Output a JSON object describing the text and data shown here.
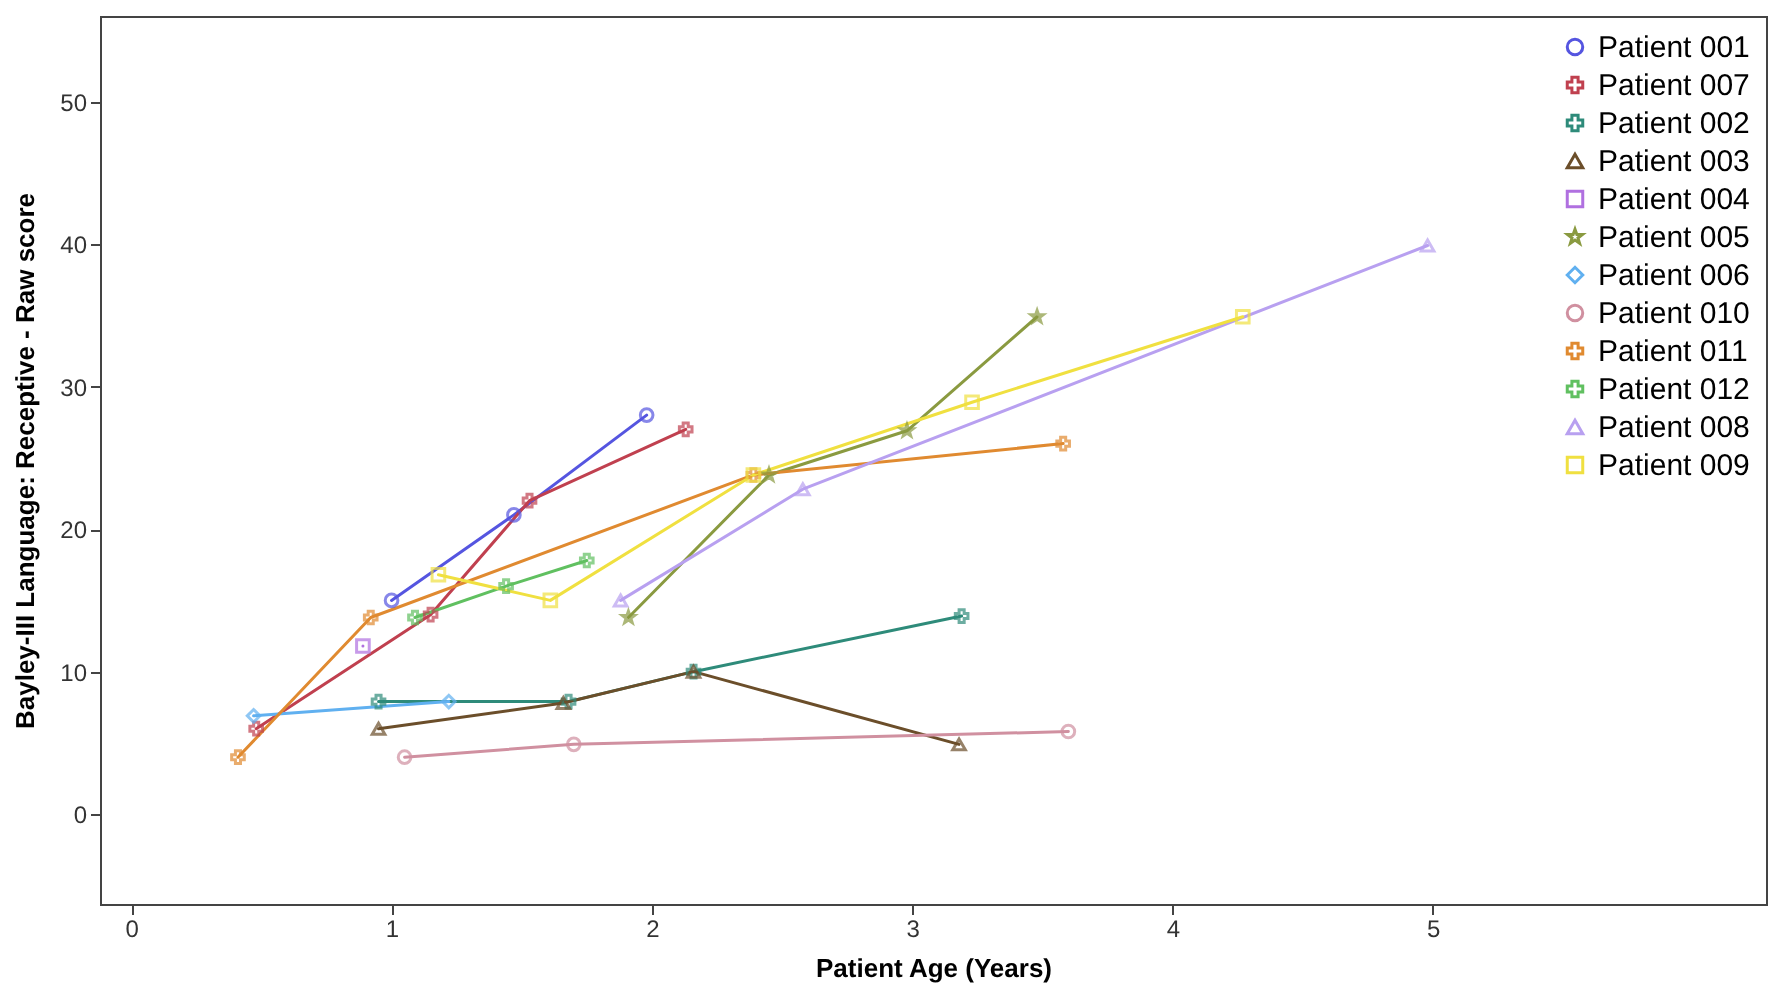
{
  "chart_data": {
    "type": "line",
    "xlabel": "Patient Age (Years)",
    "ylabel": "Bayley-III Language: Receptive - Raw score",
    "xlim": [
      -0.12,
      6.28
    ],
    "xticks": [
      0,
      1,
      2,
      3,
      4,
      5
    ],
    "ylim": [
      -6.3,
      56
    ],
    "yticks": [
      0,
      10,
      20,
      30,
      40,
      50
    ],
    "grid": false,
    "legend": "top right",
    "line_style": "solid",
    "series": [
      {
        "name": "Patient 001",
        "color": "#5555e0",
        "marker": "circle",
        "x": [
          1.0,
          1.47,
          1.98
        ],
        "values": [
          15,
          21,
          28
        ]
      },
      {
        "name": "Patient 007",
        "color": "#c0404f",
        "marker": "cross",
        "x": [
          0.48,
          1.15,
          1.53,
          2.13
        ],
        "values": [
          6,
          14,
          22,
          27
        ]
      },
      {
        "name": "Patient 002",
        "color": "#2e8b7a",
        "marker": "cross",
        "x": [
          0.95,
          1.68,
          2.16,
          3.19
        ],
        "values": [
          7.9,
          7.9,
          10,
          13.9
        ]
      },
      {
        "name": "Patient 003",
        "color": "#6b4e2a",
        "marker": "triangle",
        "x": [
          0.95,
          1.66,
          2.16,
          3.18
        ],
        "values": [
          6,
          7.8,
          10,
          4.9
        ]
      },
      {
        "name": "Patient 004",
        "color": "#b070e0",
        "marker": "square",
        "x": [
          0.89
        ],
        "values": [
          11.8
        ]
      },
      {
        "name": "Patient 005",
        "color": "#8a9a40",
        "marker": "star",
        "x": [
          1.91,
          2.45,
          2.98,
          3.48
        ],
        "values": [
          13.8,
          23.8,
          26.9,
          34.9
        ]
      },
      {
        "name": "Patient 006",
        "color": "#60b0f0",
        "marker": "diamond",
        "x": [
          0.47,
          1.22
        ],
        "values": [
          6.9,
          7.9
        ]
      },
      {
        "name": "Patient 010",
        "color": "#d090a0",
        "marker": "circle",
        "x": [
          1.05,
          1.7,
          3.6
        ],
        "values": [
          4,
          4.9,
          5.8
        ]
      },
      {
        "name": "Patient 011",
        "color": "#e08a30",
        "marker": "cross",
        "x": [
          0.41,
          0.92,
          2.39,
          3.58
        ],
        "values": [
          4,
          13.8,
          23.8,
          26
        ]
      },
      {
        "name": "Patient 012",
        "color": "#60c060",
        "marker": "cross",
        "x": [
          1.09,
          1.44,
          1.75
        ],
        "values": [
          13.8,
          16,
          17.8
        ]
      },
      {
        "name": "Patient 008",
        "color": "#b8a0f0",
        "marker": "triangle",
        "x": [
          1.88,
          2.58,
          4.98
        ],
        "values": [
          15,
          22.8,
          39.9
        ]
      },
      {
        "name": "Patient 009",
        "color": "#f0e040",
        "marker": "square",
        "x": [
          1.18,
          1.61,
          2.39,
          3.23,
          4.27
        ],
        "values": [
          16.8,
          15,
          23.8,
          28.9,
          34.9
        ]
      }
    ]
  }
}
